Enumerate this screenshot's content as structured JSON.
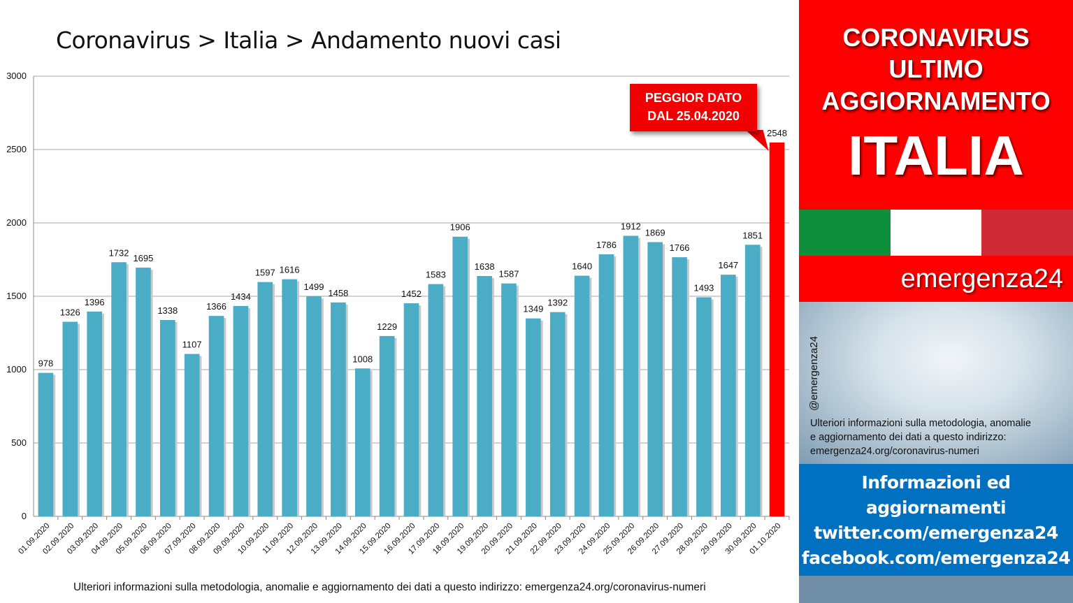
{
  "chart_title": "Coronavirus > Italia > Andamento nuovi casi",
  "footer_note": "Ulteriori informazioni sulla metodologia, anomalie e aggiornamento dei dati a questo indirizzo: emergenza24.org/coronavirus-numeri",
  "callout": {
    "line1": "PEGGIOR DATO",
    "line2": "DAL 25.04.2020"
  },
  "chart_data": {
    "type": "bar",
    "title": "Coronavirus > Italia > Andamento nuovi casi",
    "xlabel": "",
    "ylabel": "",
    "ylim": [
      0,
      3000
    ],
    "yticks": [
      0,
      500,
      1000,
      1500,
      2000,
      2500,
      3000
    ],
    "grid": true,
    "categories": [
      "01.09.2020",
      "02.09.2020",
      "03.09.2020",
      "04.09.2020",
      "05.09.2020",
      "06.09.2020",
      "07.09.2020",
      "08.09.2020",
      "09.09.2020",
      "10.09.2020",
      "11.09.2020",
      "12.09.2020",
      "13.09.2020",
      "14.09.2020",
      "15.09.2020",
      "16.09.2020",
      "17.09.2020",
      "18.09.2020",
      "19.09.2020",
      "20.09.2020",
      "21.09.2020",
      "22.09.2020",
      "23.09.2020",
      "24.09.2020",
      "25.09.2020",
      "26.09.2020",
      "27.09.2020",
      "28.09.2020",
      "29.09.2020",
      "30.09.2020",
      "01.10.2020"
    ],
    "values": [
      978,
      1326,
      1396,
      1732,
      1695,
      1338,
      1107,
      1366,
      1434,
      1597,
      1616,
      1499,
      1458,
      1008,
      1229,
      1452,
      1583,
      1906,
      1638,
      1587,
      1349,
      1392,
      1640,
      1786,
      1912,
      1869,
      1766,
      1493,
      1647,
      1851,
      2548
    ],
    "bar_color": "#4bacc6",
    "highlight_color": "#ff0000",
    "highlight_index": 30
  },
  "sidebar": {
    "line1": "CORONAVIRUS",
    "line2": "ULTIMO",
    "line3": "AGGIORNAMENTO",
    "line4": "ITALIA",
    "brand": "emergenza24",
    "handle": "@emergenza24",
    "note_line1": "Ulteriori informazioni sulla metodologia, anomalie",
    "note_line2": "e aggiornamento dei dati a questo indirizzo:",
    "note_line3": "emergenza24.org/coronavirus-numeri",
    "info_line1": "Informazioni ed",
    "info_line2": "aggiornamenti",
    "info_line3": "twitter.com/emergenza24",
    "info_line4": "facebook.com/emergenza24"
  },
  "colors": {
    "red": "#ff0000",
    "blue": "#0070c0",
    "flag_green": "#0d8f3c",
    "flag_white": "#ffffff",
    "flag_red": "#cf2b36"
  }
}
